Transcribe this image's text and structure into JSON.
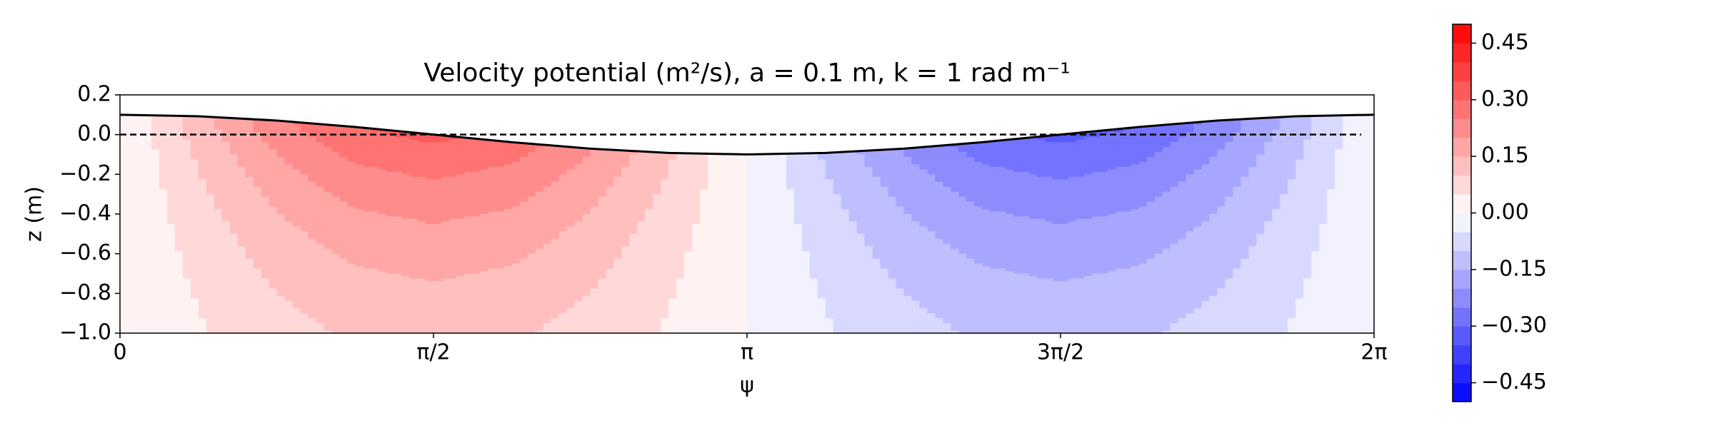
{
  "chart_data": {
    "type": "contourf",
    "title": "Velocity potential (m²/s), a = 0.1 m, k = 1 rad m⁻¹",
    "x_label": "ψ",
    "y_label": "z (m)",
    "colormap": "bwr",
    "xlim": [
      0,
      6.2832
    ],
    "ylim": [
      -1,
      0.2
    ],
    "xticks": [
      0,
      {
        "value": 1.5708,
        "label": "π/2"
      },
      {
        "value": 3.1416,
        "label": "π"
      },
      {
        "value": 4.7124,
        "label": "3π/2"
      },
      {
        "value": 6.2832,
        "label": "2π"
      }
    ],
    "yticks": [
      0.2,
      {
        "value": 0,
        "label": "0.0"
      },
      {
        "value": -0.2,
        "label": "−0.2"
      },
      {
        "value": -0.4,
        "label": "−0.4"
      },
      {
        "value": -0.6,
        "label": "−0.6"
      },
      {
        "value": -0.8,
        "label": "−0.8"
      },
      {
        "value": -1,
        "label": "−1.0"
      }
    ],
    "levels": [
      -0.5,
      -0.45,
      -0.4,
      -0.35,
      -0.3,
      -0.25,
      -0.2,
      -0.15,
      -0.1,
      -0.05,
      0,
      0.05,
      0.1,
      0.15,
      0.2,
      0.25,
      0.3,
      0.35,
      0.4,
      0.45,
      0.5
    ],
    "colorbar_ticks": [
      0.45,
      {
        "value": 0.3,
        "label": "0.30"
      },
      0.15,
      {
        "value": 0,
        "label": "0.00"
      },
      {
        "value": -0.15,
        "label": "−0.15"
      },
      {
        "value": -0.3,
        "label": "−0.30"
      },
      {
        "value": -0.45,
        "label": "−0.45"
      }
    ],
    "reference_line": 0,
    "field": {
      "x": [
        0,
        0.3927,
        0.7854,
        1.1781,
        1.5708,
        1.9635,
        2.3562,
        2.7489,
        3.1416,
        3.5343,
        3.927,
        4.3197,
        4.7124,
        5.1051,
        5.4978,
        5.8905,
        6.2832
      ],
      "z": [
        0.1,
        0,
        -0.1,
        -0.2,
        -0.3,
        -0.4,
        -0.5,
        -0.6,
        -0.7,
        -0.8,
        -0.9,
        -1
      ],
      "values": [
        [
          0,
          0.133,
          0.245,
          0.32,
          0.346,
          0.32,
          0.245,
          0.133,
          0,
          -0.133,
          -0.245,
          -0.32,
          -0.346,
          -0.32,
          -0.245,
          -0.133,
          0
        ],
        [
          0,
          0.12,
          0.222,
          0.289,
          0.313,
          0.289,
          0.222,
          0.12,
          0,
          -0.12,
          -0.222,
          -0.289,
          -0.313,
          -0.289,
          -0.222,
          -0.12,
          0
        ],
        [
          0,
          0.108,
          0.2,
          0.262,
          0.284,
          0.262,
          0.2,
          0.108,
          0,
          -0.108,
          -0.2,
          -0.262,
          -0.284,
          -0.262,
          -0.2,
          -0.108,
          0
        ],
        [
          0,
          0.098,
          0.181,
          0.237,
          0.257,
          0.237,
          0.181,
          0.098,
          0,
          -0.098,
          -0.181,
          -0.237,
          -0.257,
          -0.237,
          -0.181,
          -0.098,
          0
        ],
        [
          0,
          0.089,
          0.164,
          0.214,
          0.232,
          0.214,
          0.164,
          0.089,
          0,
          -0.089,
          -0.164,
          -0.214,
          -0.232,
          -0.214,
          -0.164,
          -0.089,
          0
        ],
        [
          0,
          0.08,
          0.148,
          0.194,
          0.21,
          0.194,
          0.148,
          0.08,
          0,
          -0.08,
          -0.148,
          -0.194,
          -0.21,
          -0.194,
          -0.148,
          -0.08,
          0
        ],
        [
          0,
          0.073,
          0.134,
          0.176,
          0.19,
          0.176,
          0.134,
          0.073,
          0,
          -0.073,
          -0.134,
          -0.176,
          -0.19,
          -0.176,
          -0.134,
          -0.073,
          0
        ],
        [
          0,
          0.066,
          0.122,
          0.159,
          0.172,
          0.159,
          0.122,
          0.066,
          0,
          -0.066,
          -0.122,
          -0.159,
          -0.172,
          -0.159,
          -0.122,
          -0.066,
          0
        ],
        [
          0,
          0.06,
          0.11,
          0.144,
          0.156,
          0.144,
          0.11,
          0.06,
          0,
          -0.06,
          -0.11,
          -0.144,
          -0.156,
          -0.144,
          -0.11,
          -0.06,
          0
        ],
        [
          0,
          0.054,
          0.1,
          0.13,
          0.141,
          0.13,
          0.1,
          0.054,
          0,
          -0.054,
          -0.1,
          -0.13,
          -0.141,
          -0.13,
          -0.1,
          -0.054,
          0
        ],
        [
          0,
          0.049,
          0.09,
          0.118,
          0.127,
          0.118,
          0.09,
          0.049,
          0,
          -0.049,
          -0.09,
          -0.118,
          -0.127,
          -0.118,
          -0.09,
          -0.049,
          0
        ],
        [
          0,
          0.044,
          0.082,
          0.107,
          0.115,
          0.107,
          0.082,
          0.044,
          0,
          -0.044,
          -0.082,
          -0.107,
          -0.115,
          -0.107,
          -0.082,
          -0.044,
          0
        ]
      ]
    },
    "surface": {
      "color": "#000000",
      "values": [
        0.1,
        0.0924,
        0.0707,
        0.0383,
        0,
        -0.0383,
        -0.0707,
        -0.0924,
        -0.1,
        -0.0924,
        -0.0707,
        -0.0383,
        0,
        0.0383,
        0.0707,
        0.0924,
        0.1
      ]
    }
  }
}
